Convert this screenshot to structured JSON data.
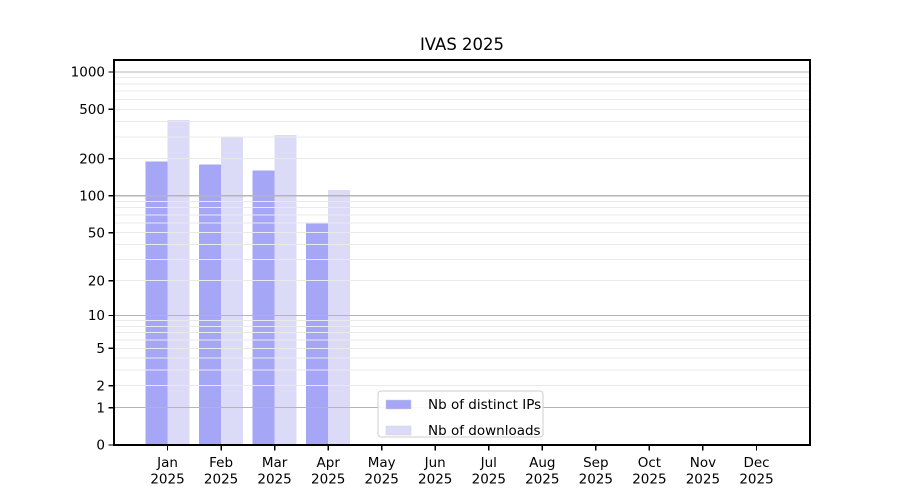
{
  "chart_data": {
    "type": "bar",
    "title": "IVAS 2025",
    "categories": [
      "Jan",
      "Feb",
      "Mar",
      "Apr",
      "May",
      "Jun",
      "Jul",
      "Aug",
      "Sep",
      "Oct",
      "Nov",
      "Dec"
    ],
    "category_year": "2025",
    "series": [
      {
        "name": "Nb of distinct IPs",
        "color": "#a6a6f6",
        "values": [
          190,
          180,
          160,
          60,
          null,
          null,
          null,
          null,
          null,
          null,
          null,
          null
        ]
      },
      {
        "name": "Nb of downloads",
        "color": "#dbdbf8",
        "values": [
          410,
          300,
          310,
          112,
          null,
          null,
          null,
          null,
          null,
          null,
          null,
          null
        ]
      }
    ],
    "y_axis": {
      "scale": "log10(value+1)",
      "tick_labels": [
        "0",
        "1",
        "2",
        "5",
        "10",
        "20",
        "50",
        "100",
        "200",
        "500",
        "1000"
      ],
      "ticks": [
        0,
        1,
        2,
        5,
        10,
        20,
        50,
        100,
        200,
        500,
        1000
      ],
      "major_gridlines": [
        1,
        10,
        100,
        1000
      ],
      "minor_gridlines": [
        2,
        3,
        4,
        5,
        6,
        7,
        8,
        9,
        20,
        30,
        40,
        50,
        60,
        70,
        80,
        90,
        200,
        300,
        400,
        500,
        600,
        700,
        800,
        900
      ]
    },
    "legend": {
      "entries": [
        "Nb of distinct IPs",
        "Nb of downloads"
      ],
      "position": "bottom-center"
    },
    "colors": {
      "major_grid": "#b5b5b5",
      "minor_grid": "#e9e9e9",
      "axis_frame": "#000000",
      "background": "#ffffff",
      "legend_border": "#cccccc"
    },
    "grid_above_bars": true
  }
}
